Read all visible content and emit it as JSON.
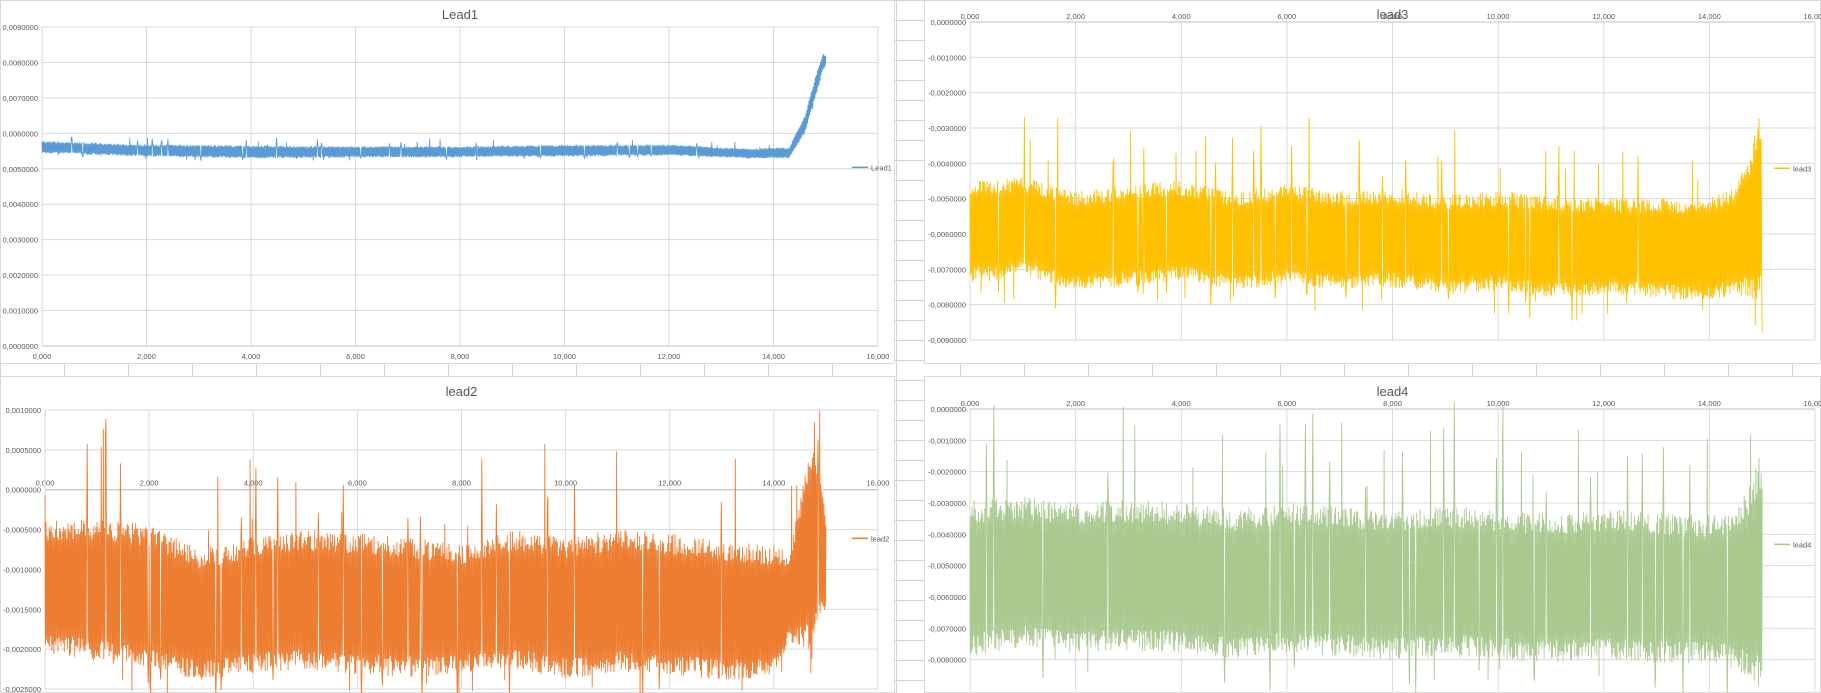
{
  "chart_data": [
    {
      "type": "line",
      "title": "Lead1",
      "color": "#5b9bd5",
      "x_ticks": [
        "0,000",
        "2,000",
        "4,000",
        "6,000",
        "8,000",
        "10,000",
        "12,000",
        "14,000",
        "16,000"
      ],
      "y_ticks": [
        "0,0000000",
        "0,0010000",
        "0,0020000",
        "0,0030000",
        "0,0040000",
        "0,0050000",
        "0,0060000",
        "0,0070000",
        "0,0080000",
        "0,0090000"
      ],
      "xlim": [
        0,
        16000
      ],
      "ylim": [
        0,
        0.009
      ],
      "legend": "top-right",
      "series": [
        {
          "name": "Lead1",
          "envelope": [
            {
              "x": 0,
              "lo": 0.00545,
              "hi": 0.00578
            },
            {
              "x": 2000,
              "lo": 0.00535,
              "hi": 0.00568
            },
            {
              "x": 4000,
              "lo": 0.0053,
              "hi": 0.00565
            },
            {
              "x": 6000,
              "lo": 0.00532,
              "hi": 0.00563
            },
            {
              "x": 8000,
              "lo": 0.00533,
              "hi": 0.00563
            },
            {
              "x": 10000,
              "lo": 0.00535,
              "hi": 0.00567
            },
            {
              "x": 12000,
              "lo": 0.00538,
              "hi": 0.00568
            },
            {
              "x": 13500,
              "lo": 0.0053,
              "hi": 0.00556
            },
            {
              "x": 14300,
              "lo": 0.0053,
              "hi": 0.0056
            },
            {
              "x": 14600,
              "lo": 0.006,
              "hi": 0.0065
            },
            {
              "x": 14800,
              "lo": 0.007,
              "hi": 0.0076
            },
            {
              "x": 14950,
              "lo": 0.0078,
              "hi": 0.00825
            },
            {
              "x": 15000,
              "lo": 0.0079,
              "hi": 0.0082
            }
          ]
        }
      ]
    },
    {
      "type": "line",
      "title": "lead2",
      "color": "#ed7d31",
      "x_ticks": [
        "0,000",
        "2,000",
        "4,000",
        "6,000",
        "8,000",
        "10,000",
        "12,000",
        "14,000",
        "16,000"
      ],
      "y_ticks": [
        "0,0010000",
        "0,0005000",
        "0,0000000",
        "-0,0005000",
        "-0,0010000",
        "-0,0015000",
        "-0,0020000",
        "-0,0025000"
      ],
      "xlim": [
        0,
        16000
      ],
      "ylim": [
        -0.0025,
        0.001
      ],
      "legend": "right",
      "series": [
        {
          "name": "lead2",
          "envelope": [
            {
              "x": 0,
              "lo": -0.00205,
              "hi": -0.0004
            },
            {
              "x": 1000,
              "lo": -0.00215,
              "hi": -0.00035
            },
            {
              "x": 2000,
              "lo": -0.00225,
              "hi": -0.00045
            },
            {
              "x": 3000,
              "lo": -0.0024,
              "hi": -0.00075
            },
            {
              "x": 4000,
              "lo": -0.0023,
              "hi": -0.0006
            },
            {
              "x": 5000,
              "lo": -0.00225,
              "hi": -0.0005
            },
            {
              "x": 6000,
              "lo": -0.00232,
              "hi": -0.00055
            },
            {
              "x": 7000,
              "lo": -0.00235,
              "hi": -0.0006
            },
            {
              "x": 8000,
              "lo": -0.0023,
              "hi": -0.0007
            },
            {
              "x": 9000,
              "lo": -0.00225,
              "hi": -0.0005
            },
            {
              "x": 10000,
              "lo": -0.00238,
              "hi": -0.0006
            },
            {
              "x": 11000,
              "lo": -0.00228,
              "hi": -0.0005
            },
            {
              "x": 12000,
              "lo": -0.00232,
              "hi": -0.00055
            },
            {
              "x": 13000,
              "lo": -0.0024,
              "hi": -0.00065
            },
            {
              "x": 14000,
              "lo": -0.00235,
              "hi": -0.0007
            },
            {
              "x": 14300,
              "lo": -0.0019,
              "hi": -0.0008
            },
            {
              "x": 14600,
              "lo": -0.002,
              "hi": 0.0002
            },
            {
              "x": 14750,
              "lo": -0.00215,
              "hi": 0.0006
            },
            {
              "x": 14850,
              "lo": -0.0016,
              "hi": 0.0003
            },
            {
              "x": 15000,
              "lo": -0.0016,
              "hi": -0.0003
            }
          ]
        }
      ]
    },
    {
      "type": "line",
      "title": "lead3",
      "color": "#ffc000",
      "x_ticks": [
        "0,000",
        "2,000",
        "4,000",
        "6,000",
        "8,000",
        "10,000",
        "12,000",
        "14,000",
        "16,000"
      ],
      "y_ticks": [
        "0,0000000",
        "-0,0010000",
        "-0,0020000",
        "-0,0030000",
        "-0,0040000",
        "-0,0050000",
        "-0,0060000",
        "-0,0070000",
        "-0,0080000",
        "-0,0090000"
      ],
      "xlim": [
        0,
        16000
      ],
      "ylim": [
        -0.009,
        0
      ],
      "legend": "right",
      "series": [
        {
          "name": "lead3",
          "envelope": [
            {
              "x": 0,
              "lo": -0.0074,
              "hi": -0.0045
            },
            {
              "x": 1000,
              "lo": -0.0072,
              "hi": -0.0044
            },
            {
              "x": 2000,
              "lo": -0.0076,
              "hi": -0.0048
            },
            {
              "x": 3000,
              "lo": -0.0075,
              "hi": -0.0046
            },
            {
              "x": 4000,
              "lo": -0.0073,
              "hi": -0.0045
            },
            {
              "x": 5000,
              "lo": -0.0076,
              "hi": -0.0048
            },
            {
              "x": 6000,
              "lo": -0.0074,
              "hi": -0.0046
            },
            {
              "x": 7000,
              "lo": -0.0076,
              "hi": -0.0048
            },
            {
              "x": 8000,
              "lo": -0.0075,
              "hi": -0.0047
            },
            {
              "x": 9000,
              "lo": -0.0077,
              "hi": -0.0049
            },
            {
              "x": 10000,
              "lo": -0.0076,
              "hi": -0.0048
            },
            {
              "x": 11000,
              "lo": -0.0078,
              "hi": -0.0049
            },
            {
              "x": 12000,
              "lo": -0.0077,
              "hi": -0.005
            },
            {
              "x": 13000,
              "lo": -0.0078,
              "hi": -0.005
            },
            {
              "x": 14000,
              "lo": -0.0079,
              "hi": -0.005
            },
            {
              "x": 14500,
              "lo": -0.0077,
              "hi": -0.0046
            },
            {
              "x": 14800,
              "lo": -0.0078,
              "hi": -0.0036
            },
            {
              "x": 14950,
              "lo": -0.0079,
              "hi": -0.0025
            },
            {
              "x": 15000,
              "lo": -0.0081,
              "hi": -0.0028
            }
          ]
        }
      ]
    },
    {
      "type": "line",
      "title": "lead4",
      "color": "#a9c98f",
      "x_ticks": [
        "0,000",
        "2,000",
        "4,000",
        "6,000",
        "8,000",
        "10,000",
        "12,000",
        "14,000",
        "16,000"
      ],
      "y_ticks": [
        "0,0000000",
        "-0,0010000",
        "-0,0020000",
        "-0,0030000",
        "-0,0040000",
        "-0,0050000",
        "-0,0060000",
        "-0,0070000",
        "-0,0080000"
      ],
      "xlim": [
        0,
        16000
      ],
      "ylim": [
        -0.009,
        0
      ],
      "legend": "right",
      "series": [
        {
          "name": "lead4",
          "envelope": [
            {
              "x": 0,
              "lo": -0.0079,
              "hi": -0.0029
            },
            {
              "x": 1000,
              "lo": -0.0076,
              "hi": -0.0028
            },
            {
              "x": 2000,
              "lo": -0.0078,
              "hi": -0.003
            },
            {
              "x": 3000,
              "lo": -0.0077,
              "hi": -0.0029
            },
            {
              "x": 4000,
              "lo": -0.0078,
              "hi": -0.003
            },
            {
              "x": 5000,
              "lo": -0.008,
              "hi": -0.0032
            },
            {
              "x": 6000,
              "lo": -0.0078,
              "hi": -0.003
            },
            {
              "x": 7000,
              "lo": -0.0079,
              "hi": -0.0031
            },
            {
              "x": 8000,
              "lo": -0.008,
              "hi": -0.0033
            },
            {
              "x": 9000,
              "lo": -0.0079,
              "hi": -0.0031
            },
            {
              "x": 10000,
              "lo": -0.008,
              "hi": -0.0032
            },
            {
              "x": 11000,
              "lo": -0.0081,
              "hi": -0.0033
            },
            {
              "x": 12000,
              "lo": -0.008,
              "hi": -0.0032
            },
            {
              "x": 13000,
              "lo": -0.0081,
              "hi": -0.0033
            },
            {
              "x": 14000,
              "lo": -0.0081,
              "hi": -0.0034
            },
            {
              "x": 14500,
              "lo": -0.0083,
              "hi": -0.0033
            },
            {
              "x": 14800,
              "lo": -0.0087,
              "hi": -0.0023
            },
            {
              "x": 14950,
              "lo": -0.009,
              "hi": -0.0015
            },
            {
              "x": 15000,
              "lo": -0.0085,
              "hi": -0.0019
            }
          ]
        }
      ]
    }
  ]
}
